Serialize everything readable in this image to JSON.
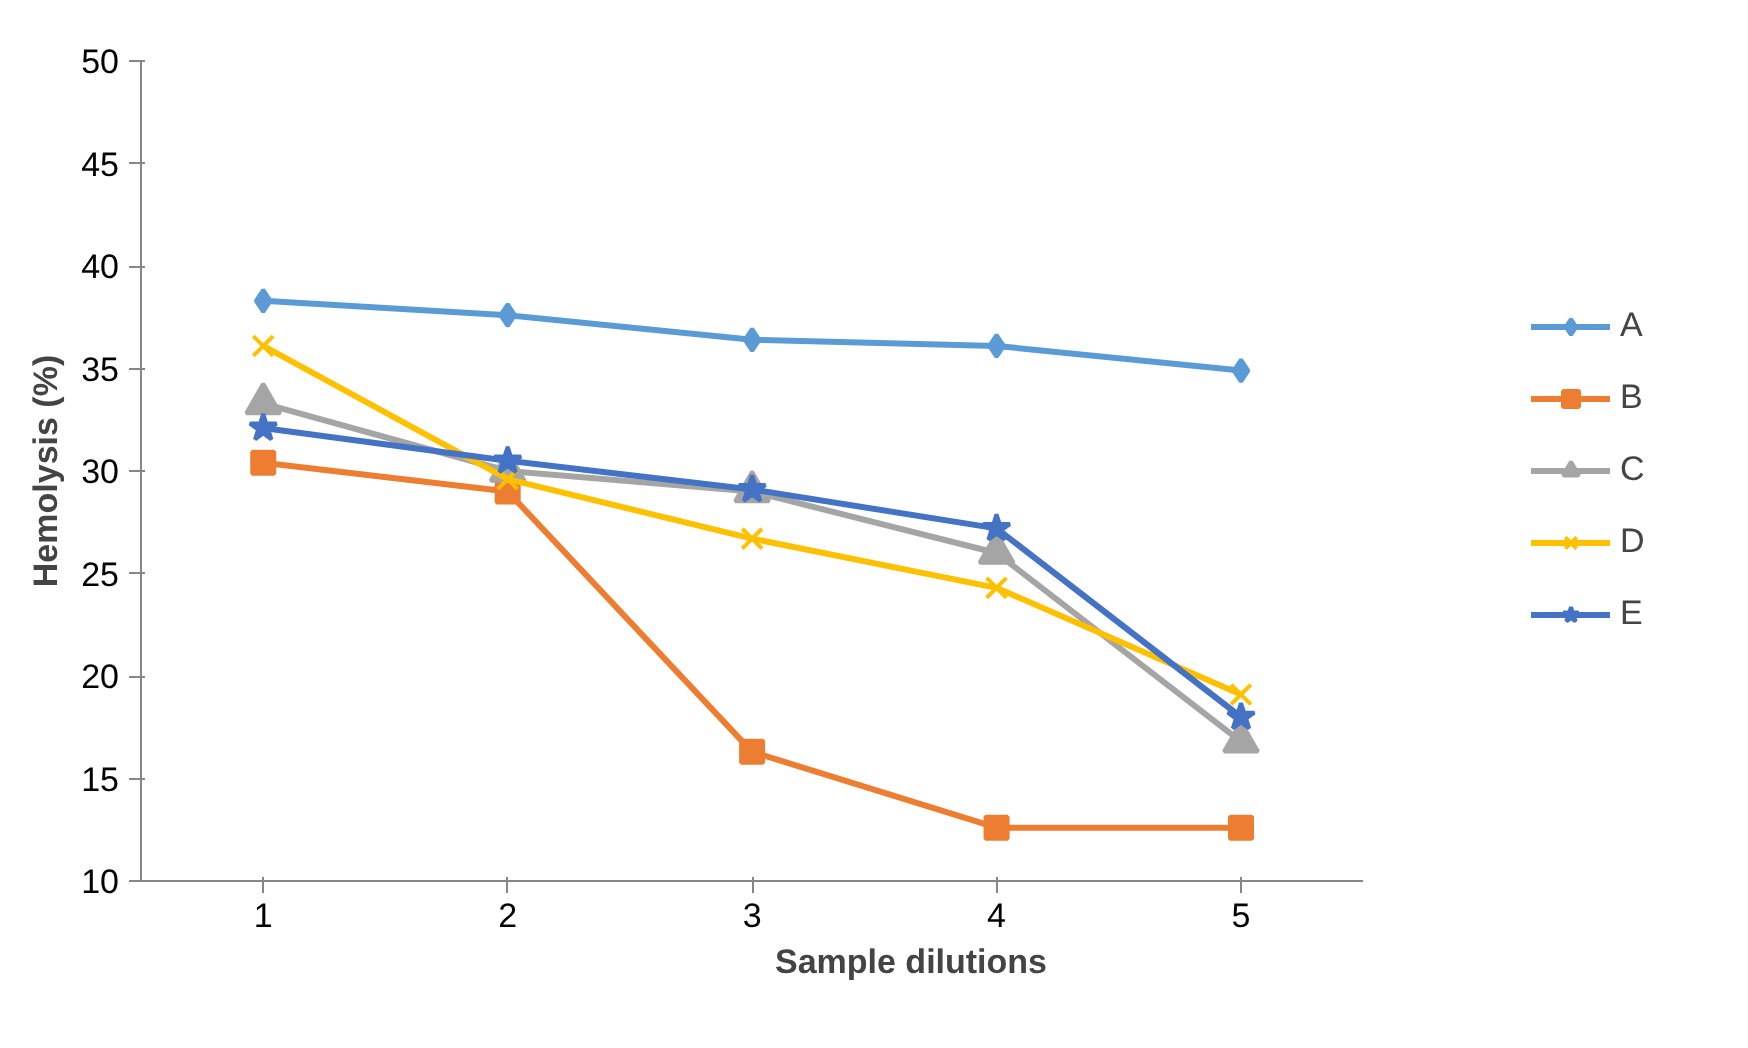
{
  "chart_data": {
    "type": "line",
    "xlabel": "Sample dilutions",
    "ylabel": "Hemolysis (%)",
    "categories": [
      "1",
      "2",
      "3",
      "4",
      "5"
    ],
    "ylim": [
      10,
      50
    ],
    "yticks": [
      10,
      15,
      20,
      25,
      30,
      35,
      40,
      45,
      50
    ],
    "grid": false,
    "legend": "right",
    "line_style": "solid",
    "series": [
      {
        "name": "A",
        "color": "#5b9bd5",
        "marker": "diamond",
        "values": [
          38.3,
          37.6,
          36.4,
          36.1,
          34.9
        ]
      },
      {
        "name": "B",
        "color": "#ed7d31",
        "marker": "square",
        "values": [
          30.4,
          29.0,
          16.3,
          12.6,
          12.6
        ]
      },
      {
        "name": "C",
        "color": "#a5a5a5",
        "marker": "triangle",
        "values": [
          33.3,
          30.0,
          29.0,
          26.0,
          16.8
        ]
      },
      {
        "name": "D",
        "color": "#ffc000",
        "marker": "cross",
        "values": [
          36.1,
          29.6,
          26.7,
          24.3,
          19.1
        ]
      },
      {
        "name": "E",
        "color": "#4472c4",
        "marker": "star",
        "values": [
          32.1,
          30.5,
          29.1,
          27.2,
          18.0
        ]
      }
    ]
  }
}
